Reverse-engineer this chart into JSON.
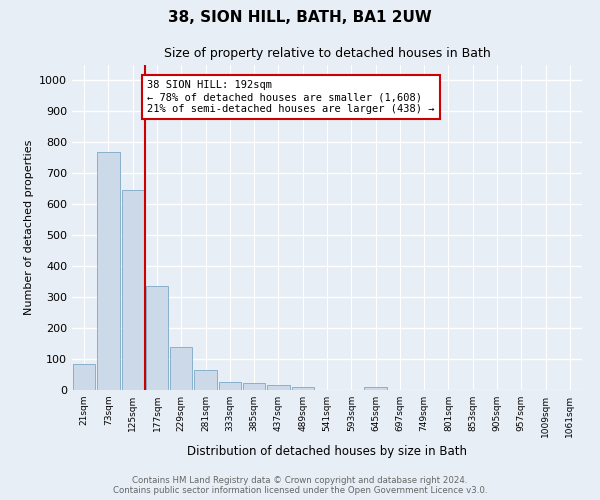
{
  "title": "38, SION HILL, BATH, BA1 2UW",
  "subtitle": "Size of property relative to detached houses in Bath",
  "xlabel": "Distribution of detached houses by size in Bath",
  "ylabel": "Number of detached properties",
  "bar_color": "#ccd9e8",
  "bar_edge_color": "#8ab0cc",
  "background_color": "#e8eef5",
  "grid_color": "#ffffff",
  "annotation_line_color": "#cc0000",
  "annotation_box_color": "#cc0000",
  "annotation_text": "38 SION HILL: 192sqm\n← 78% of detached houses are smaller (1,608)\n21% of semi-detached houses are larger (438) →",
  "property_bin_index": 3,
  "footer": "Contains HM Land Registry data © Crown copyright and database right 2024.\nContains public sector information licensed under the Open Government Licence v3.0.",
  "bin_labels": [
    "21sqm",
    "73sqm",
    "125sqm",
    "177sqm",
    "229sqm",
    "281sqm",
    "333sqm",
    "385sqm",
    "437sqm",
    "489sqm",
    "541sqm",
    "593sqm",
    "645sqm",
    "697sqm",
    "749sqm",
    "801sqm",
    "853sqm",
    "905sqm",
    "957sqm",
    "1009sqm",
    "1061sqm"
  ],
  "bin_values": [
    85,
    770,
    645,
    335,
    138,
    65,
    27,
    22,
    17,
    10,
    0,
    0,
    10,
    0,
    0,
    0,
    0,
    0,
    0,
    0,
    0
  ],
  "ylim": [
    0,
    1050
  ],
  "yticks": [
    0,
    100,
    200,
    300,
    400,
    500,
    600,
    700,
    800,
    900,
    1000
  ]
}
